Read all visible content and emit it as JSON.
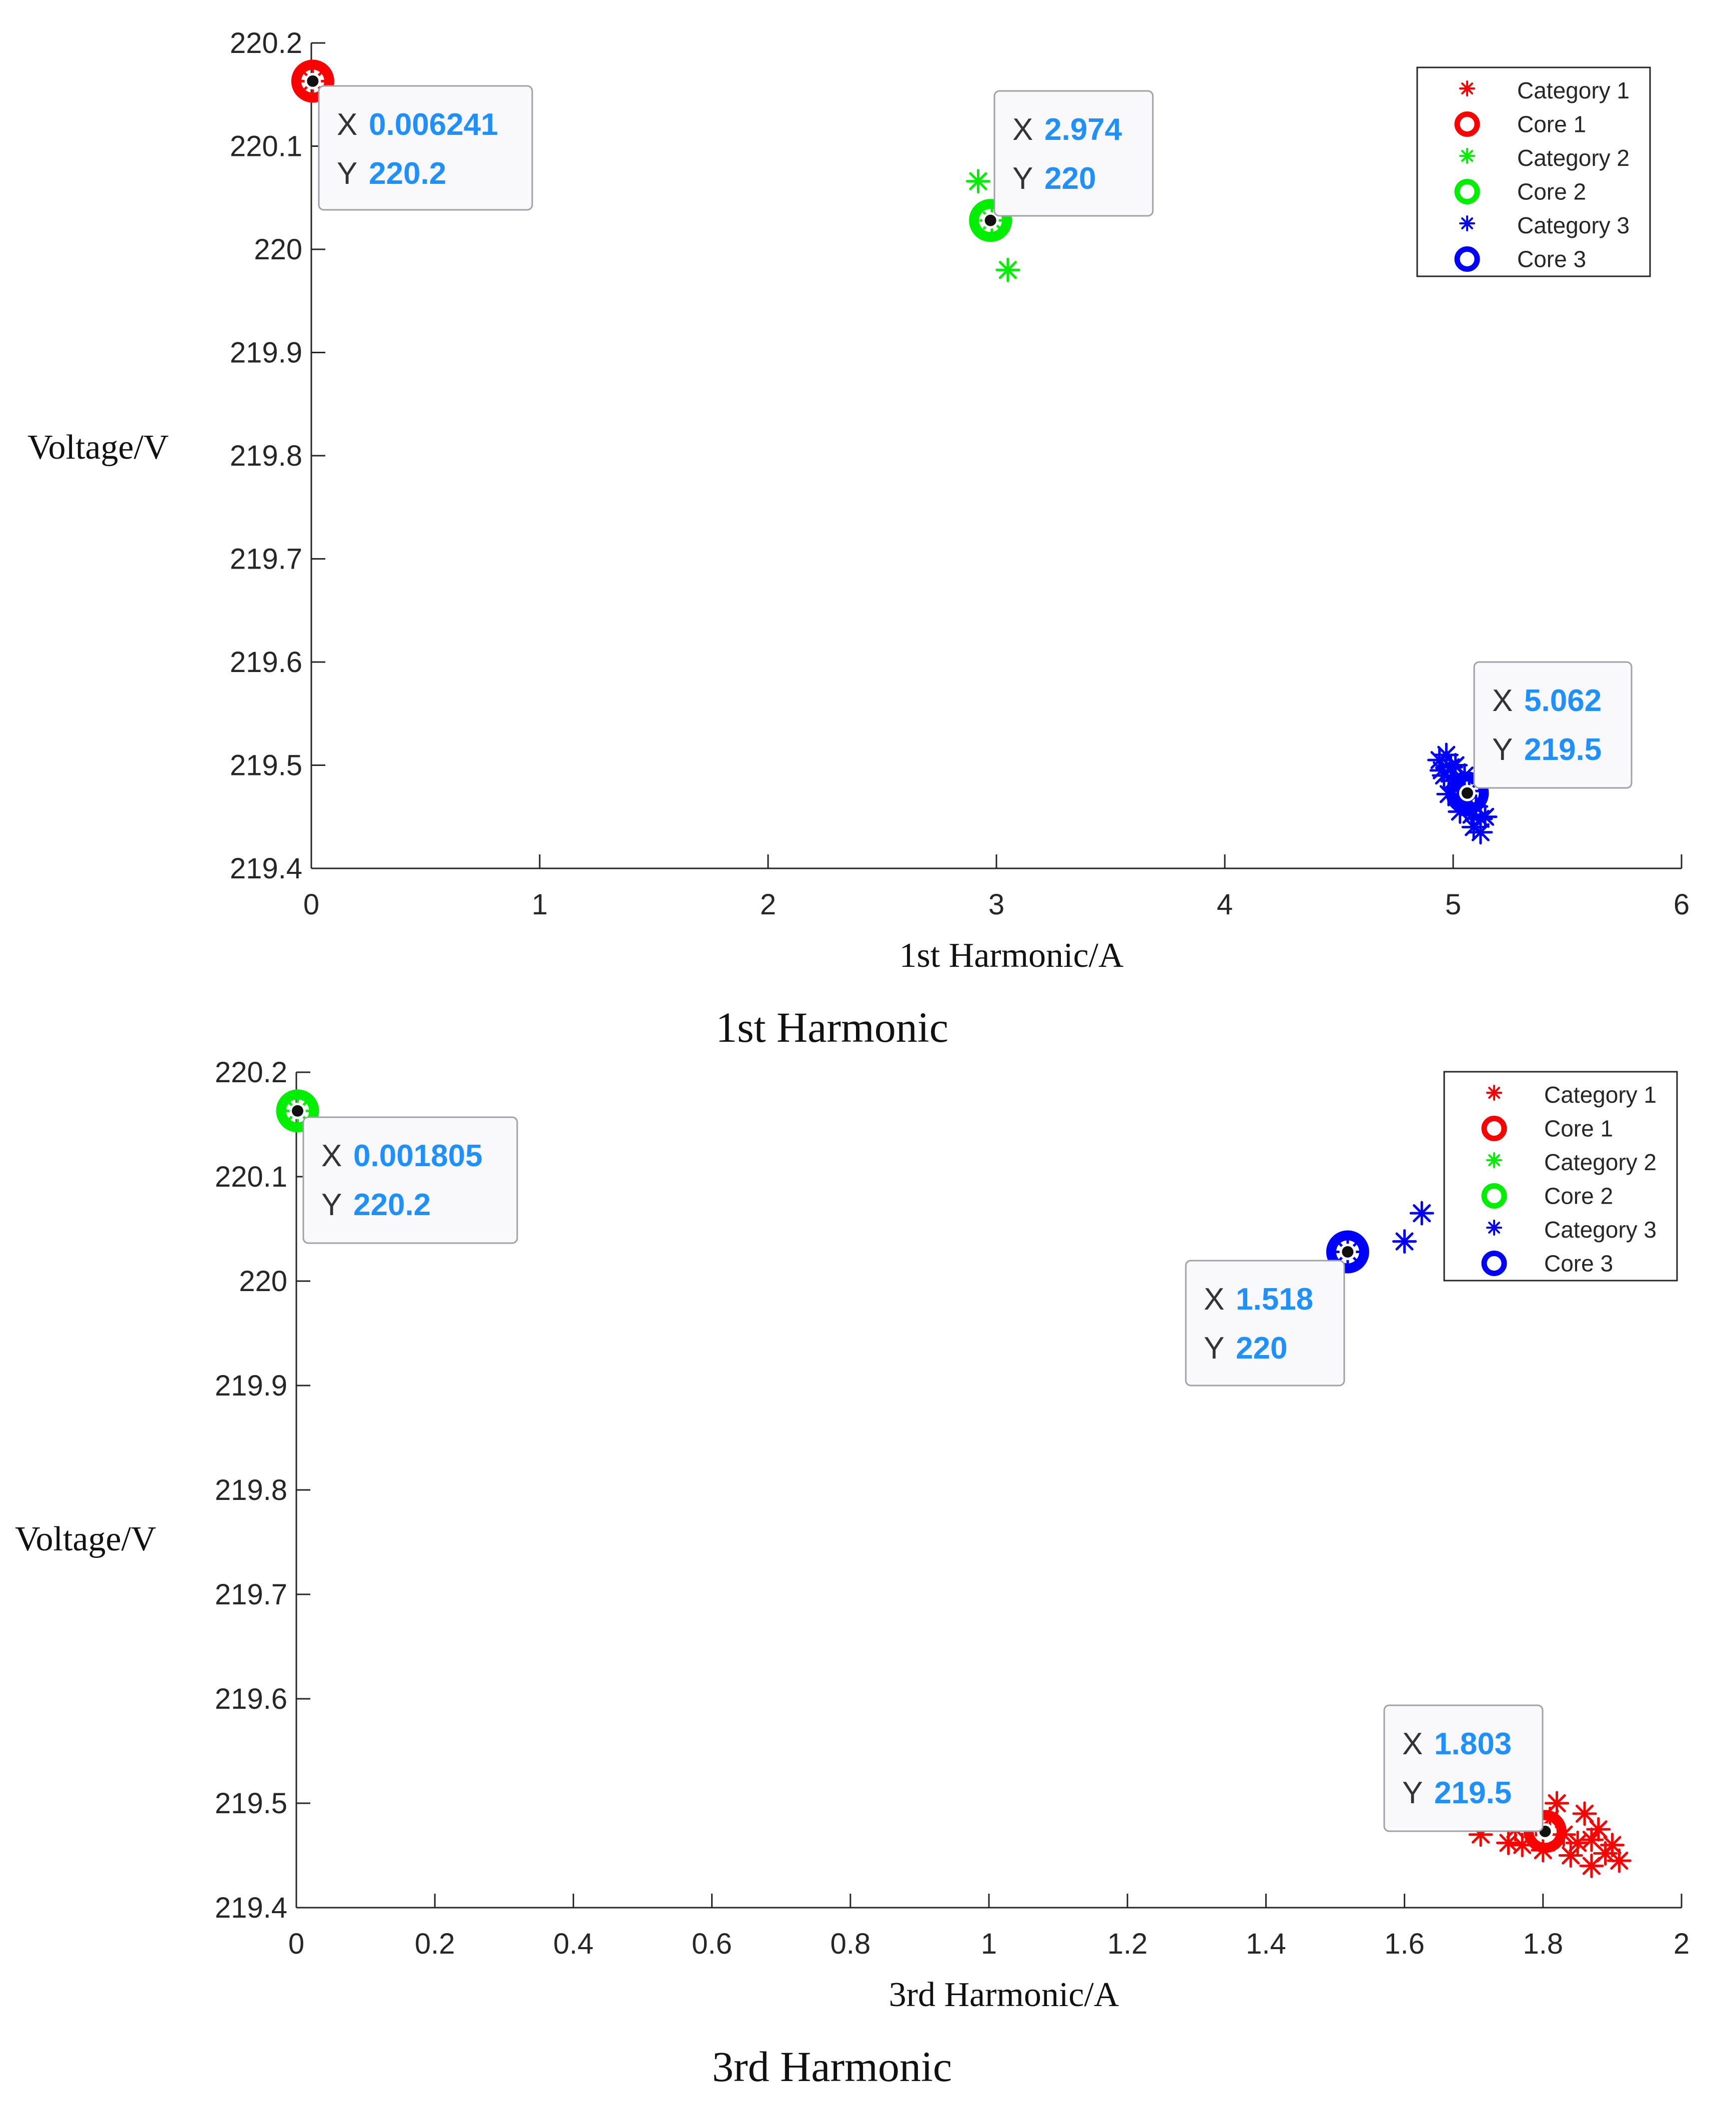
{
  "chart_data": [
    {
      "type": "scatter",
      "title": "1st Harmonic",
      "xlabel": "1st Harmonic/A",
      "ylabel": "Voltage/V",
      "xlim": [
        0,
        6
      ],
      "ylim": [
        219.4,
        220.2
      ],
      "xticks": [
        "0",
        "1",
        "2",
        "3",
        "4",
        "5",
        "6"
      ],
      "yticks": [
        "219.4",
        "219.5",
        "219.6",
        "219.7",
        "219.8",
        "219.9",
        "220",
        "220.1",
        "220.2"
      ],
      "legend": {
        "position": "top-right",
        "entries": [
          {
            "label": "Category 1",
            "marker": "star",
            "color": "#ff0000"
          },
          {
            "label": "Core 1",
            "marker": "ring",
            "color": "#ff0000"
          },
          {
            "label": "Category 2",
            "marker": "star",
            "color": "#00ee00"
          },
          {
            "label": "Core 2",
            "marker": "ring",
            "color": "#00ee00"
          },
          {
            "label": "Category 3",
            "marker": "star",
            "color": "#0000ff"
          },
          {
            "label": "Core 3",
            "marker": "ring",
            "color": "#0000ff"
          }
        ]
      },
      "series": [
        {
          "name": "Category 1",
          "marker": "star",
          "color": "#ff0000",
          "points": [
            [
              0.006,
              220.163
            ]
          ]
        },
        {
          "name": "Core 1",
          "marker": "ring",
          "color": "#ff0000",
          "points": [
            [
              0.006241,
              220.163
            ]
          ]
        },
        {
          "name": "Category 2",
          "marker": "star",
          "color": "#00ee00",
          "points": [
            [
              2.92,
              220.066
            ],
            [
              3.05,
              219.98
            ],
            [
              2.98,
              220.028
            ]
          ]
        },
        {
          "name": "Core 2",
          "marker": "ring",
          "color": "#00ee00",
          "points": [
            [
              2.974,
              220.028
            ]
          ]
        },
        {
          "name": "Category 3",
          "marker": "star",
          "color": "#0000ff",
          "points": [
            [
              4.94,
              219.505
            ],
            [
              4.97,
              219.51
            ],
            [
              4.99,
              219.498
            ],
            [
              4.96,
              219.49
            ],
            [
              5.0,
              219.485
            ],
            [
              5.02,
              219.478
            ],
            [
              4.98,
              219.472
            ],
            [
              5.04,
              219.47
            ],
            [
              5.06,
              219.462
            ],
            [
              5.03,
              219.455
            ],
            [
              5.08,
              219.452
            ],
            [
              5.1,
              219.46
            ],
            [
              5.12,
              219.448
            ],
            [
              5.09,
              219.44
            ],
            [
              5.12,
              219.435
            ],
            [
              5.14,
              219.45
            ],
            [
              5.05,
              219.49
            ],
            [
              5.01,
              219.5
            ],
            [
              4.95,
              219.495
            ],
            [
              5.07,
              219.475
            ]
          ]
        },
        {
          "name": "Core 3",
          "marker": "ring",
          "color": "#0000ff",
          "points": [
            [
              5.062,
              219.473
            ]
          ]
        }
      ],
      "datatips": [
        {
          "x": "0.006241",
          "y": "220.2",
          "x_value": 0.006241,
          "y_value": 220.163
        },
        {
          "x": "2.974",
          "y": "220",
          "x_value": 2.974,
          "y_value": 220.028
        },
        {
          "x": "5.062",
          "y": "219.5",
          "x_value": 5.062,
          "y_value": 219.473
        }
      ]
    },
    {
      "type": "scatter",
      "title": "3rd Harmonic",
      "xlabel": "3rd Harmonic/A",
      "ylabel": "Voltage/V",
      "xlim": [
        0,
        2
      ],
      "ylim": [
        219.4,
        220.2
      ],
      "xticks": [
        "0",
        "0.2",
        "0.4",
        "0.6",
        "0.8",
        "1",
        "1.2",
        "1.4",
        "1.6",
        "1.8",
        "2"
      ],
      "yticks": [
        "219.4",
        "219.5",
        "219.6",
        "219.7",
        "219.8",
        "219.9",
        "220",
        "220.1",
        "220.2"
      ],
      "legend": {
        "position": "top-right",
        "entries": [
          {
            "label": "Category 1",
            "marker": "star",
            "color": "#ff0000"
          },
          {
            "label": "Core 1",
            "marker": "ring",
            "color": "#ff0000"
          },
          {
            "label": "Category 2",
            "marker": "star",
            "color": "#00ee00"
          },
          {
            "label": "Core 2",
            "marker": "ring",
            "color": "#00ee00"
          },
          {
            "label": "Category 3",
            "marker": "star",
            "color": "#0000ff"
          },
          {
            "label": "Core 3",
            "marker": "ring",
            "color": "#0000ff"
          }
        ]
      },
      "series": [
        {
          "name": "Category 1",
          "marker": "star",
          "color": "#ff0000",
          "points": [
            [
              1.71,
              219.47
            ],
            [
              1.74,
              219.49
            ],
            [
              1.76,
              219.475
            ],
            [
              1.77,
              219.46
            ],
            [
              1.79,
              219.48
            ],
            [
              1.8,
              219.455
            ],
            [
              1.82,
              219.5
            ],
            [
              1.83,
              219.47
            ],
            [
              1.84,
              219.45
            ],
            [
              1.85,
              219.462
            ],
            [
              1.86,
              219.49
            ],
            [
              1.87,
              219.44
            ],
            [
              1.88,
              219.475
            ],
            [
              1.89,
              219.452
            ],
            [
              1.9,
              219.46
            ],
            [
              1.91,
              219.445
            ],
            [
              1.78,
              219.5
            ],
            [
              1.75,
              219.462
            ],
            [
              1.81,
              219.485
            ],
            [
              1.87,
              219.465
            ]
          ]
        },
        {
          "name": "Core 1",
          "marker": "ring",
          "color": "#ff0000",
          "points": [
            [
              1.803,
              219.473
            ]
          ]
        },
        {
          "name": "Category 2",
          "marker": "star",
          "color": "#00ee00",
          "points": [
            [
              0.0018,
              220.163
            ]
          ]
        },
        {
          "name": "Core 2",
          "marker": "ring",
          "color": "#00ee00",
          "points": [
            [
              0.001805,
              220.163
            ]
          ]
        },
        {
          "name": "Category 3",
          "marker": "star",
          "color": "#0000ff",
          "points": [
            [
              1.6,
              220.038
            ],
            [
              1.625,
              220.065
            ],
            [
              1.518,
              220.028
            ]
          ]
        },
        {
          "name": "Core 3",
          "marker": "ring",
          "color": "#0000ff",
          "points": [
            [
              1.518,
              220.028
            ]
          ]
        }
      ],
      "datatips": [
        {
          "x": "0.001805",
          "y": "220.2",
          "x_value": 0.001805,
          "y_value": 220.163
        },
        {
          "x": "1.518",
          "y": "220",
          "x_value": 1.518,
          "y_value": 220.028
        },
        {
          "x": "1.803",
          "y": "219.5",
          "x_value": 1.803,
          "y_value": 219.473
        }
      ]
    }
  ],
  "labels": {
    "x_key": "X",
    "y_key": "Y"
  }
}
